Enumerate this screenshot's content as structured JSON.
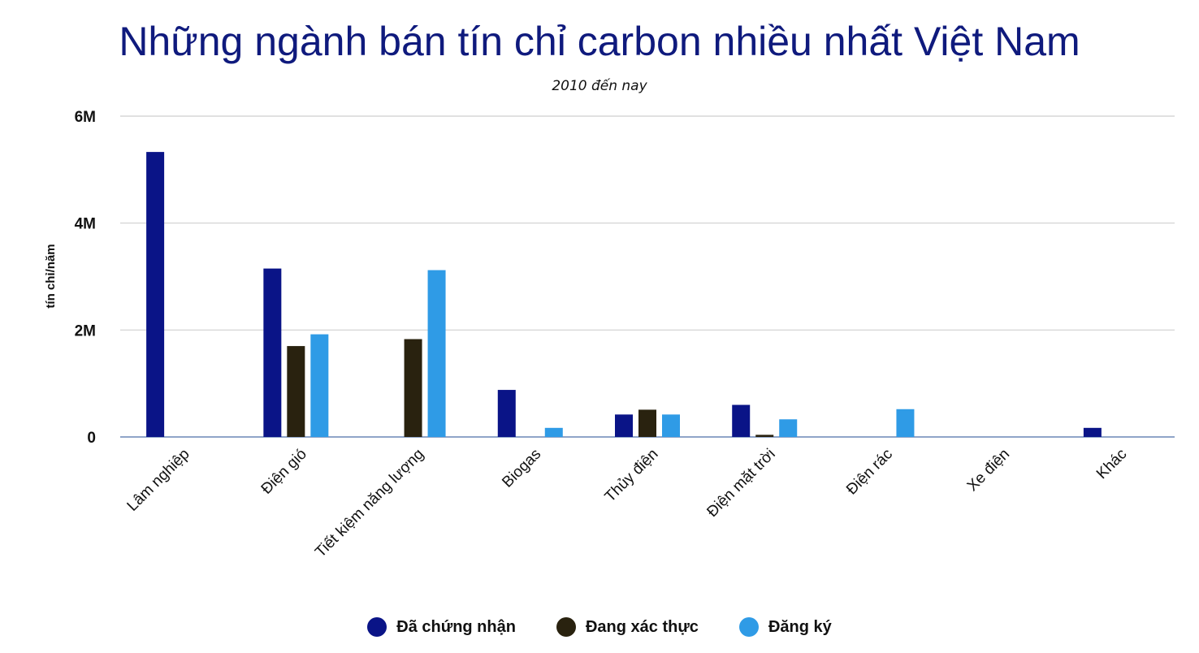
{
  "colors": {
    "title": "#0f1a7d",
    "series": [
      "#0a1487",
      "#29220f",
      "#2f9be6"
    ],
    "grid": "#cfcfcf",
    "baseline": "#8fa5c8"
  },
  "chart_data": {
    "type": "bar",
    "title": "Những ngành bán tín chỉ carbon nhiều nhất Việt Nam",
    "subtitle": "2010 đến nay",
    "ylabel": "tín chỉ/năm",
    "xlabel": "",
    "ylim": [
      0,
      6000000
    ],
    "yticks": [
      {
        "value": 0,
        "label": "0"
      },
      {
        "value": 2000000,
        "label": "2M"
      },
      {
        "value": 4000000,
        "label": "4M"
      },
      {
        "value": 6000000,
        "label": "6M"
      }
    ],
    "grid": true,
    "legend": "bottom",
    "categories": [
      "Lâm nghiệp",
      "Điện gió",
      "Tiết kiệm năng lượng",
      "Biogas",
      "Thủy điện",
      "Điện mặt trời",
      "Điện rác",
      "Xe điện",
      "Khác"
    ],
    "series": [
      {
        "name": "Đã chứng nhận",
        "values": [
          5330000,
          3150000,
          0,
          880000,
          420000,
          600000,
          0,
          0,
          170000
        ]
      },
      {
        "name": "Đang xác thực",
        "values": [
          0,
          1700000,
          1830000,
          0,
          510000,
          40000,
          0,
          0,
          0
        ]
      },
      {
        "name": "Đăng ký",
        "values": [
          0,
          1920000,
          3120000,
          170000,
          420000,
          330000,
          520000,
          0,
          0
        ]
      }
    ]
  }
}
